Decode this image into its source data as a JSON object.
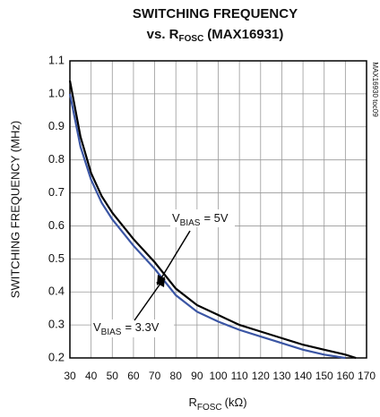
{
  "chart_data": {
    "type": "line",
    "title": {
      "line1": "SWITCHING FREQUENCY",
      "line2": [
        "vs. R",
        "FOSC",
        "(MAX16931)"
      ]
    },
    "x_label": [
      "R",
      "FOSC",
      "(kΩ)"
    ],
    "y_label": "SWITCHING FREQUENCY (MHz)",
    "side_note": "MAX16930 toc09",
    "series": [
      {
        "color": "#000000",
        "x": [
          30,
          35,
          40,
          45,
          50,
          60,
          70,
          80,
          90,
          100,
          110,
          120,
          130,
          140,
          150,
          160,
          165
        ],
        "values": [
          1.04,
          0.87,
          0.76,
          0.69,
          0.64,
          0.56,
          0.49,
          0.41,
          0.36,
          0.33,
          0.3,
          0.28,
          0.26,
          0.24,
          0.225,
          0.21,
          0.2
        ]
      },
      {
        "color": "#3a55a4",
        "x": [
          30,
          35,
          40,
          45,
          50,
          60,
          70,
          80,
          90,
          100,
          110,
          120,
          130,
          140,
          150,
          160
        ],
        "values": [
          1.0,
          0.84,
          0.74,
          0.67,
          0.62,
          0.54,
          0.47,
          0.39,
          0.34,
          0.31,
          0.285,
          0.265,
          0.245,
          0.225,
          0.21,
          0.2
        ]
      }
    ],
    "annotations": [
      {
        "parts": [
          "V",
          "BIAS",
          "= 5V"
        ]
      },
      {
        "parts": [
          "V",
          "BIAS",
          "= 3.3V"
        ]
      }
    ],
    "xlim": [
      30,
      170
    ],
    "xticks": [
      30,
      40,
      50,
      60,
      70,
      80,
      90,
      100,
      110,
      120,
      130,
      140,
      150,
      160,
      170
    ],
    "ylim": [
      0.2,
      1.1
    ],
    "yticks": [
      {
        "value": 0.2,
        "label": "0.2"
      },
      {
        "value": 0.3,
        "label": "0.3"
      },
      {
        "value": 0.4,
        "label": "0.4"
      },
      {
        "value": 0.5,
        "label": "0.5"
      },
      {
        "value": 0.6,
        "label": "0.6"
      },
      {
        "value": 0.7,
        "label": "0.7"
      },
      {
        "value": 0.8,
        "label": "0.8"
      },
      {
        "value": 0.9,
        "label": "0.9"
      },
      {
        "value": 1.0,
        "label": "1.0"
      },
      {
        "value": 1.1,
        "label": "1.1"
      }
    ],
    "grid": true
  }
}
